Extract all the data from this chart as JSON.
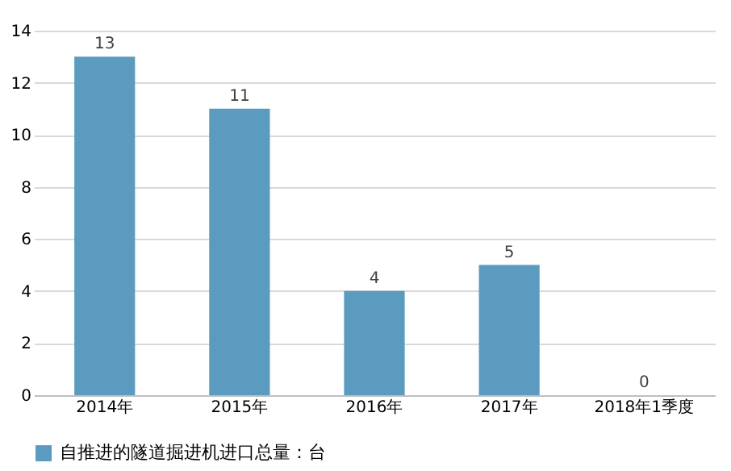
{
  "chart_data": {
    "type": "bar",
    "categories": [
      "2014年",
      "2015年",
      "2016年",
      "2017年",
      "2018年1季度"
    ],
    "series": [
      {
        "name": "自推进的隧道掘进机进口总量：台",
        "color": "#5b9bc0",
        "values": [
          13,
          11,
          4,
          5,
          0
        ]
      }
    ],
    "ylim": [
      0,
      14
    ],
    "yticks": [
      0,
      2,
      4,
      6,
      8,
      10,
      12,
      14
    ],
    "grid": "y",
    "legend": "bottom",
    "data_labels": true
  }
}
